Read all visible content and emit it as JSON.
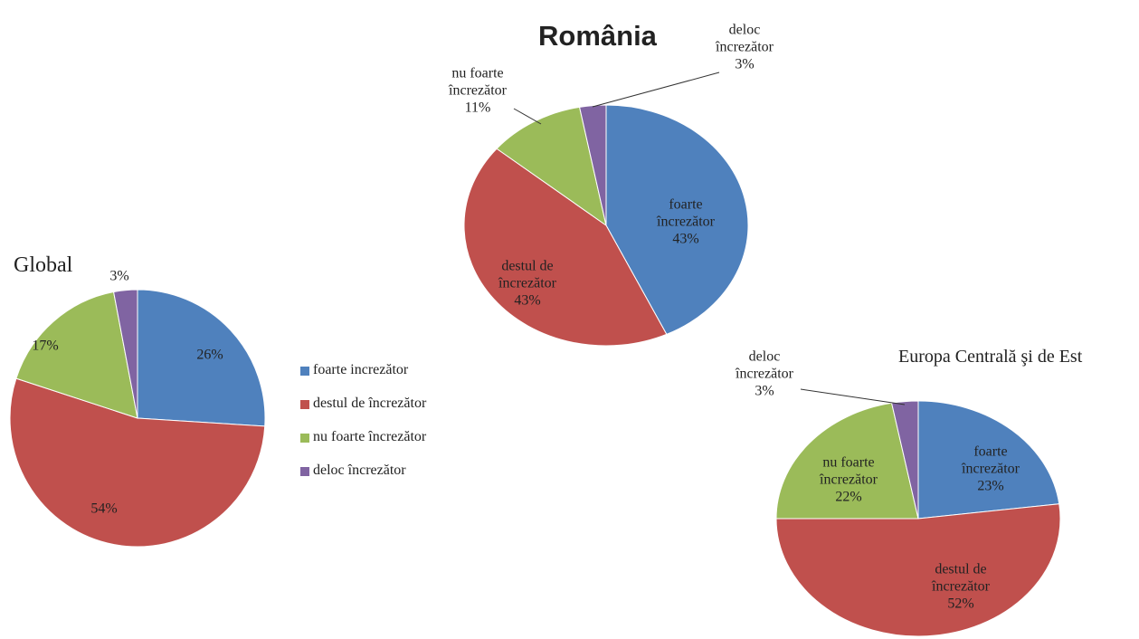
{
  "chart_data": [
    {
      "type": "pie",
      "title": "Global",
      "categories": [
        "foarte increzător",
        "destul de încrezător",
        "nu foarte încrezător",
        "deloc încrezător"
      ],
      "values": [
        26,
        54,
        17,
        3
      ],
      "value_labels": [
        "26%",
        "54%",
        "17%",
        "3%"
      ],
      "colors": [
        "#4f81bd",
        "#c0504d",
        "#9bbb59",
        "#8064a2"
      ],
      "legend": true
    },
    {
      "type": "pie",
      "title": "România",
      "categories": [
        "foarte încrezător",
        "destul de încrezător",
        "nu foarte încrezător",
        "deloc încrezător"
      ],
      "values": [
        43,
        43,
        11,
        3
      ],
      "value_labels": [
        "43%",
        "43%",
        "11%",
        "3%"
      ],
      "colors": [
        "#4f81bd",
        "#c0504d",
        "#9bbb59",
        "#8064a2"
      ],
      "legend": false
    },
    {
      "type": "pie",
      "title": "Europa Centrală şi de Est",
      "categories": [
        "foarte încrezător",
        "destul de încrezător",
        "nu foarte încrezător",
        "deloc încrezător"
      ],
      "values": [
        23,
        52,
        22,
        3
      ],
      "value_labels": [
        "23%",
        "52%",
        "22%",
        "3%"
      ],
      "colors": [
        "#4f81bd",
        "#c0504d",
        "#9bbb59",
        "#8064a2"
      ],
      "legend": false
    }
  ]
}
